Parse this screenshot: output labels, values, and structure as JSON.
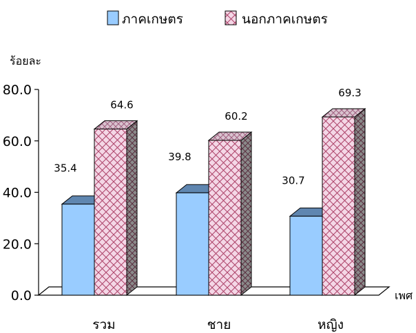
{
  "chart_data": {
    "type": "bar",
    "ylabel": "ร้อยละ",
    "xlabel": "เพศ",
    "categories": [
      "รวม",
      "ชาย",
      "หญิง"
    ],
    "series": [
      {
        "name": "ภาคเกษตร",
        "values": [
          35.4,
          39.8,
          30.7
        ],
        "color": "#99ccff"
      },
      {
        "name": "นอกภาคเกษตร",
        "values": [
          64.6,
          60.2,
          69.3
        ],
        "color": "#f4d7e6"
      }
    ],
    "ylim": [
      0,
      80
    ],
    "yticks": [
      "0.0",
      "20.0",
      "40.0",
      "60.0",
      "80.0"
    ],
    "grid": false,
    "legend_position": "top",
    "style": "3d-clustered-bar"
  }
}
